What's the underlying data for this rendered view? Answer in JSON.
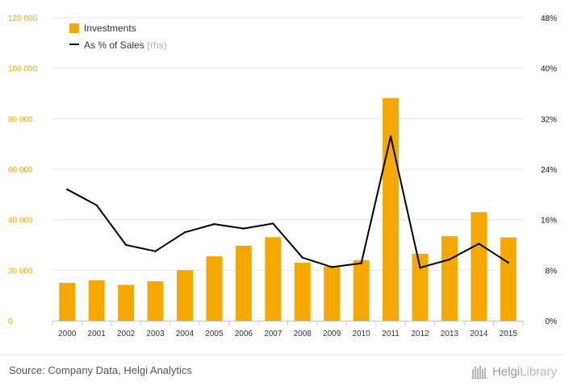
{
  "chart_data": {
    "type": "bar",
    "categories": [
      "2000",
      "2001",
      "2002",
      "2003",
      "2004",
      "2005",
      "2006",
      "2007",
      "2008",
      "2009",
      "2010",
      "2011",
      "2012",
      "2013",
      "2014",
      "2015"
    ],
    "series": [
      {
        "name": "Investments",
        "type": "bar",
        "axis": "left",
        "color": "#f5a800",
        "values": [
          15000,
          16000,
          14200,
          15600,
          20000,
          25500,
          29700,
          33100,
          23000,
          21500,
          24000,
          88200,
          26500,
          33500,
          43000,
          33000
        ]
      },
      {
        "name": "As % of Sales",
        "name_suffix": "(rhs)",
        "type": "line",
        "axis": "right",
        "color": "#000000",
        "values": [
          20.8,
          18.3,
          12.0,
          11.0,
          14.0,
          15.3,
          14.6,
          15.4,
          10.0,
          8.5,
          9.1,
          29.2,
          8.4,
          9.7,
          12.2,
          9.2
        ]
      }
    ],
    "ylim": [
      0,
      120000
    ],
    "yticks": [
      "0",
      "20 000",
      "40 000",
      "60 000",
      "80 000",
      "100 000",
      "120 000"
    ],
    "y2lim": [
      0,
      48
    ],
    "y2ticks": [
      "0%",
      "8%",
      "16%",
      "24%",
      "32%",
      "40%",
      "48%"
    ],
    "legend_position": "top-left",
    "grid": true
  },
  "source_text": "Source: Company Data, Helgi Analytics",
  "brand": {
    "name": "HelgiLibrary",
    "part1": "Helgi",
    "part2": "Library",
    "icon": "library-shelf-icon"
  }
}
